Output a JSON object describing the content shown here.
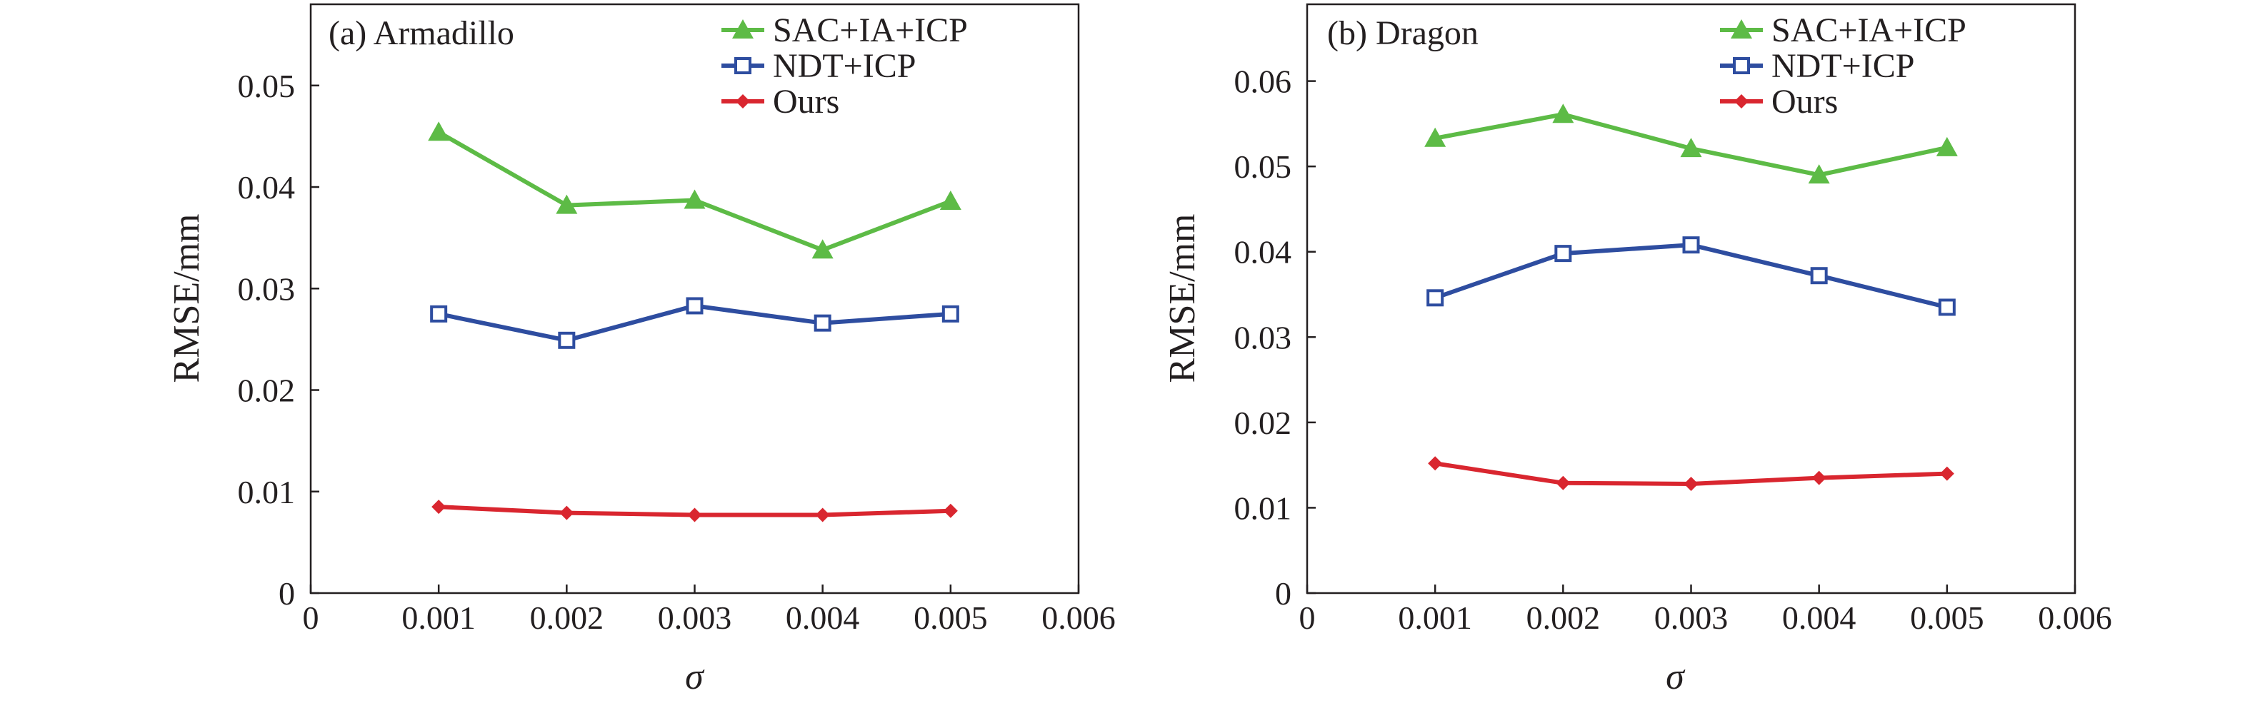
{
  "chart_data": [
    {
      "type": "line",
      "title": "(a) Armadillo",
      "xlabel": "σ",
      "ylabel": "RMSE/mm",
      "xlim": [
        0,
        0.006
      ],
      "ylim": [
        0,
        0.058
      ],
      "x_ticks": [
        "0",
        "0.001",
        "0.002",
        "0.003",
        "0.004",
        "0.005",
        "0.006"
      ],
      "y_ticks": [
        "0",
        "0.01",
        "0.02",
        "0.03",
        "0.04",
        "0.05"
      ],
      "y_tick_values": [
        0,
        0.01,
        0.02,
        0.03,
        0.04,
        0.05
      ],
      "x_tick_values": [
        0,
        0.001,
        0.002,
        0.003,
        0.004,
        0.005,
        0.006
      ],
      "x": [
        0.001,
        0.002,
        0.003,
        0.004,
        0.005
      ],
      "legend_position": "top-right",
      "grid": false,
      "series": [
        {
          "name": "SAC+IA+ICP",
          "color": "#5dbb46",
          "marker": "triangle",
          "values": [
            0.0454,
            0.0382,
            0.0387,
            0.0338,
            0.0386
          ]
        },
        {
          "name": "NDT+ICP",
          "color": "#2e4da0",
          "marker": "square",
          "values": [
            0.0275,
            0.0249,
            0.0283,
            0.0266,
            0.0275
          ]
        },
        {
          "name": "Ours",
          "color": "#d9262f",
          "marker": "diamond",
          "values": [
            0.0085,
            0.0079,
            0.0077,
            0.0077,
            0.0081
          ]
        }
      ]
    },
    {
      "type": "line",
      "title": "(b) Dragon",
      "xlabel": "σ",
      "ylabel": "RMSE/mm",
      "xlim": [
        0,
        0.006
      ],
      "ylim": [
        0,
        0.069
      ],
      "x_ticks": [
        "0",
        "0.001",
        "0.002",
        "0.003",
        "0.004",
        "0.005",
        "0.006"
      ],
      "y_ticks": [
        "0",
        "0.01",
        "0.02",
        "0.03",
        "0.04",
        "0.05",
        "0.06"
      ],
      "y_tick_values": [
        0,
        0.01,
        0.02,
        0.03,
        0.04,
        0.05,
        0.06
      ],
      "x_tick_values": [
        0,
        0.001,
        0.002,
        0.003,
        0.004,
        0.005,
        0.006
      ],
      "x": [
        0.001,
        0.002,
        0.003,
        0.004,
        0.005
      ],
      "legend_position": "top-right",
      "grid": false,
      "series": [
        {
          "name": "SAC+IA+ICP",
          "color": "#5dbb46",
          "marker": "triangle",
          "values": [
            0.0533,
            0.0561,
            0.0521,
            0.049,
            0.0522
          ]
        },
        {
          "name": "NDT+ICP",
          "color": "#2e4da0",
          "marker": "square",
          "values": [
            0.0346,
            0.0398,
            0.0408,
            0.0372,
            0.0335
          ]
        },
        {
          "name": "Ours",
          "color": "#d9262f",
          "marker": "diamond",
          "values": [
            0.0152,
            0.0129,
            0.0128,
            0.0135,
            0.014
          ]
        }
      ]
    }
  ]
}
